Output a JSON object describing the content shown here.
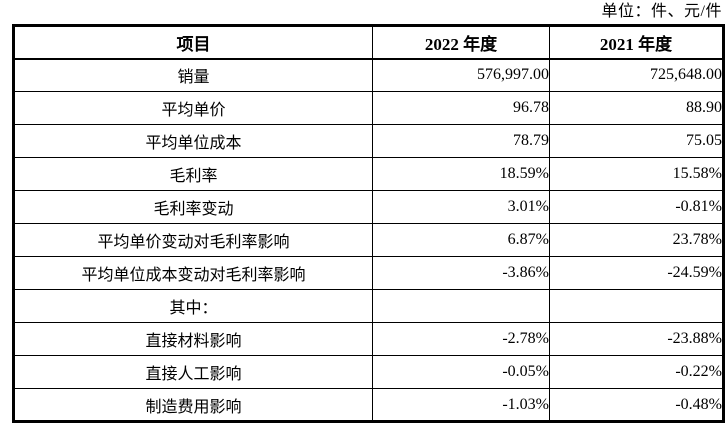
{
  "unit_label": "单位：件、元/件",
  "table": {
    "columns": [
      "项目",
      "2022 年度",
      "2021 年度"
    ],
    "rows": [
      {
        "label": "销量",
        "y2022": "576,997.00",
        "y2021": "725,648.00"
      },
      {
        "label": "平均单价",
        "y2022": "96.78",
        "y2021": "88.90"
      },
      {
        "label": "平均单位成本",
        "y2022": "78.79",
        "y2021": "75.05"
      },
      {
        "label": "毛利率",
        "y2022": "18.59%",
        "y2021": "15.58%"
      },
      {
        "label": "毛利率变动",
        "y2022": "3.01%",
        "y2021": "-0.81%"
      },
      {
        "label": "平均单价变动对毛利率影响",
        "y2022": "6.87%",
        "y2021": "23.78%"
      },
      {
        "label": "平均单位成本变动对毛利率影响",
        "y2022": "-3.86%",
        "y2021": "-24.59%"
      },
      {
        "label": "其中：",
        "y2022": "",
        "y2021": ""
      },
      {
        "label": "直接材料影响",
        "y2022": "-2.78%",
        "y2021": "-23.88%"
      },
      {
        "label": "直接人工影响",
        "y2022": "-0.05%",
        "y2021": "-0.22%"
      },
      {
        "label": "制造费用影响",
        "y2022": "-1.03%",
        "y2021": "-0.48%"
      }
    ]
  }
}
